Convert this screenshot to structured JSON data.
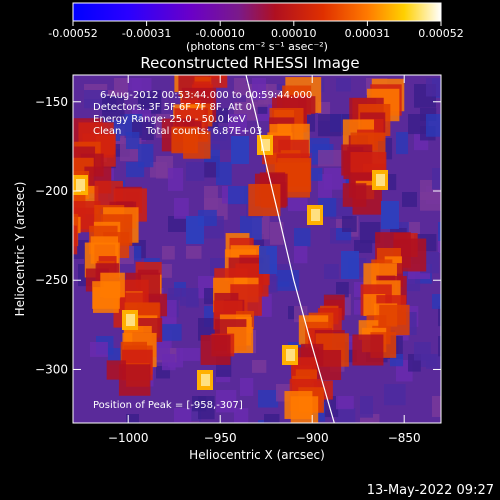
{
  "chart_data": {
    "type": "heatmap",
    "title": "Reconstructed RHESSI Image",
    "colorbar": {
      "ticks": [
        "-0.00052",
        "-0.00031",
        "-0.00010",
        "0.00010",
        "0.00031",
        "0.00052"
      ],
      "range": [
        -0.00052,
        0.00052
      ],
      "units": "(photons cm⁻² s⁻¹ asec⁻²)",
      "colors": [
        "#0000ff",
        "#2a00ff",
        "#6a00c8",
        "#7a1a8a",
        "#b01020",
        "#e03000",
        "#ff7a00",
        "#ffd000",
        "#ffffff"
      ]
    },
    "xlabel": "Heliocentric X (arcsec)",
    "ylabel": "Heliocentric Y (arcsec)",
    "xlim": [
      -1030,
      -830
    ],
    "ylim": [
      -330,
      -135
    ],
    "xticks": [
      -1000,
      -950,
      -900,
      -850
    ],
    "yticks": [
      -150,
      -200,
      -250,
      -300
    ],
    "annotations": {
      "time_range": "6-Aug-2012 00:53:44.000 to 00:59:44.000",
      "detectors": "Detectors: 3F 5F 6F 7F 8F, Att 0",
      "energy": "Energy Range: 25.0 - 50.0 keV",
      "clean": "Clean",
      "total_counts": "Total counts: 6.87E+03",
      "peak": "Position of Peak = [-958,-307]"
    },
    "peak": [
      -958,
      -307
    ],
    "limb_curve": {
      "x": [
        -936,
        -930,
        -925,
        -918,
        -910,
        -902,
        -895,
        -888
      ],
      "y": [
        -135,
        -160,
        -185,
        -215,
        -250,
        -280,
        -305,
        -330
      ]
    }
  },
  "footer": {
    "date": "13-May-2022 09:27"
  }
}
